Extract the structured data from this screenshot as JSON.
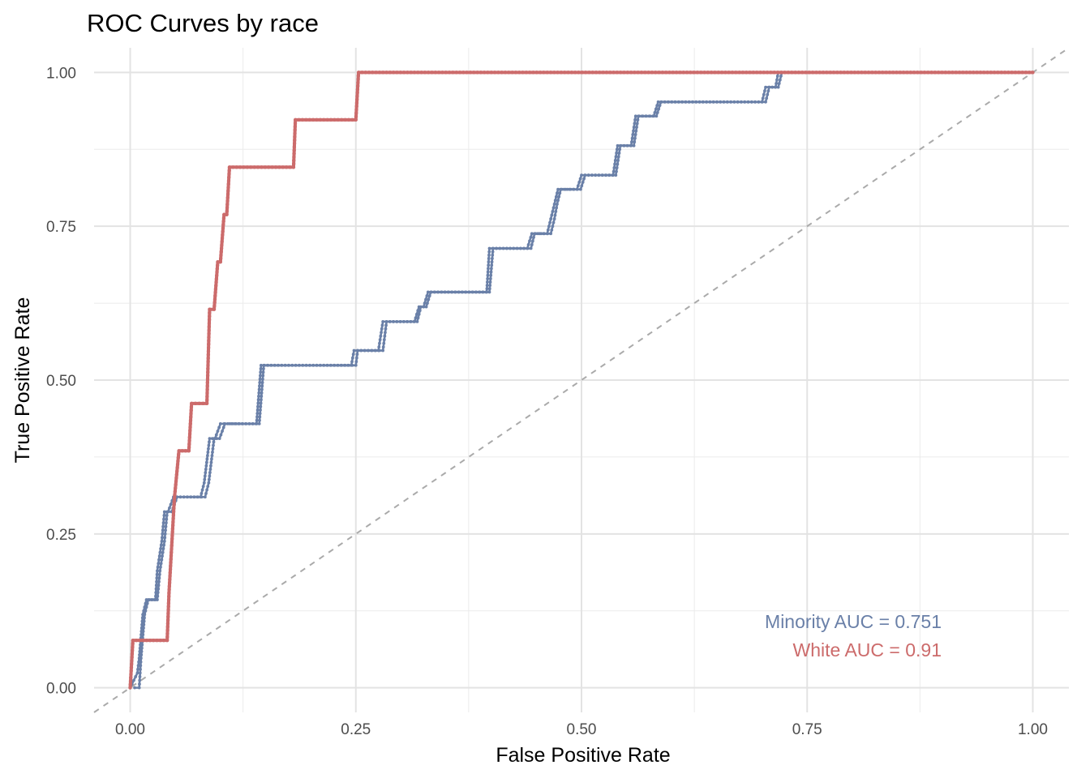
{
  "chart_data": {
    "type": "line",
    "title": "ROC Curves by race",
    "xlabel": "False Positive Rate",
    "ylabel": "True Positive Rate",
    "xlim": [
      -0.04,
      1.04
    ],
    "ylim": [
      -0.04,
      1.04
    ],
    "x_ticks": [
      "0.00",
      "0.25",
      "0.50",
      "0.75",
      "1.00"
    ],
    "y_ticks": [
      "0.00",
      "0.25",
      "0.50",
      "0.75",
      "1.00"
    ],
    "grid": true,
    "reference_line": {
      "x": [
        0,
        1
      ],
      "y": [
        0,
        1
      ],
      "color": "#aaaaaa",
      "style": "dashed"
    },
    "annotations": [
      {
        "text": "Minority AUC = 0.751",
        "color": "#6a80a8"
      },
      {
        "text": "White AUC = 0.91",
        "color": "#cc6b6b"
      }
    ],
    "series": [
      {
        "color": "#6a80a8",
        "x": [
          0.0,
          0.008,
          0.01,
          0.014,
          0.018,
          0.028,
          0.03,
          0.035,
          0.038,
          0.042,
          0.048,
          0.078,
          0.082,
          0.088,
          0.094,
          0.1,
          0.104,
          0.14,
          0.145,
          0.245,
          0.248,
          0.275,
          0.28,
          0.315,
          0.32,
          0.325,
          0.33,
          0.395,
          0.398,
          0.44,
          0.445,
          0.462,
          0.466,
          0.47,
          0.474,
          0.495,
          0.5,
          0.535,
          0.54,
          0.555,
          0.56,
          0.58,
          0.585,
          0.7,
          0.704,
          0.715,
          0.718,
          1.0
        ],
        "y": [
          0.0,
          0.024,
          0.048,
          0.119,
          0.143,
          0.143,
          0.19,
          0.238,
          0.286,
          0.286,
          0.31,
          0.31,
          0.333,
          0.405,
          0.405,
          0.429,
          0.429,
          0.429,
          0.524,
          0.524,
          0.548,
          0.548,
          0.595,
          0.595,
          0.619,
          0.619,
          0.643,
          0.643,
          0.714,
          0.714,
          0.738,
          0.738,
          0.762,
          0.786,
          0.81,
          0.81,
          0.833,
          0.833,
          0.881,
          0.881,
          0.929,
          0.929,
          0.952,
          0.952,
          0.976,
          0.976,
          1.0,
          1.0
        ]
      },
      {
        "color": "#6a80a8",
        "x": [
          0.005,
          0.01,
          0.012,
          0.016,
          0.02,
          0.03,
          0.033,
          0.038,
          0.041,
          0.046,
          0.052,
          0.083,
          0.087,
          0.093,
          0.099,
          0.105,
          0.11,
          0.143,
          0.148,
          0.25,
          0.252,
          0.28,
          0.284,
          0.318,
          0.322,
          0.328,
          0.333,
          0.398,
          0.402,
          0.444,
          0.448,
          0.466,
          0.47,
          0.473,
          0.477,
          0.499,
          0.504,
          0.538,
          0.543,
          0.558,
          0.563,
          0.583,
          0.588,
          0.704,
          0.708,
          0.718,
          0.722,
          0.985
        ],
        "y": [
          0.0,
          0.0,
          0.048,
          0.119,
          0.143,
          0.143,
          0.19,
          0.238,
          0.286,
          0.286,
          0.31,
          0.31,
          0.333,
          0.405,
          0.405,
          0.429,
          0.429,
          0.429,
          0.524,
          0.524,
          0.548,
          0.548,
          0.595,
          0.595,
          0.619,
          0.619,
          0.643,
          0.643,
          0.714,
          0.714,
          0.738,
          0.738,
          0.762,
          0.786,
          0.81,
          0.81,
          0.833,
          0.833,
          0.881,
          0.881,
          0.929,
          0.929,
          0.952,
          0.952,
          0.976,
          0.976,
          1.0,
          1.0
        ]
      },
      {
        "color": "#cc6b6b",
        "x": [
          0.0,
          0.003,
          0.041,
          0.043,
          0.046,
          0.049,
          0.054,
          0.065,
          0.068,
          0.085,
          0.088,
          0.093,
          0.097,
          0.1,
          0.104,
          0.107,
          0.11,
          0.181,
          0.183,
          0.25,
          0.253,
          1.0
        ],
        "y": [
          0.0,
          0.077,
          0.077,
          0.154,
          0.231,
          0.308,
          0.385,
          0.385,
          0.462,
          0.462,
          0.615,
          0.615,
          0.692,
          0.692,
          0.769,
          0.769,
          0.846,
          0.846,
          0.923,
          0.923,
          1.0,
          1.0
        ]
      }
    ]
  }
}
